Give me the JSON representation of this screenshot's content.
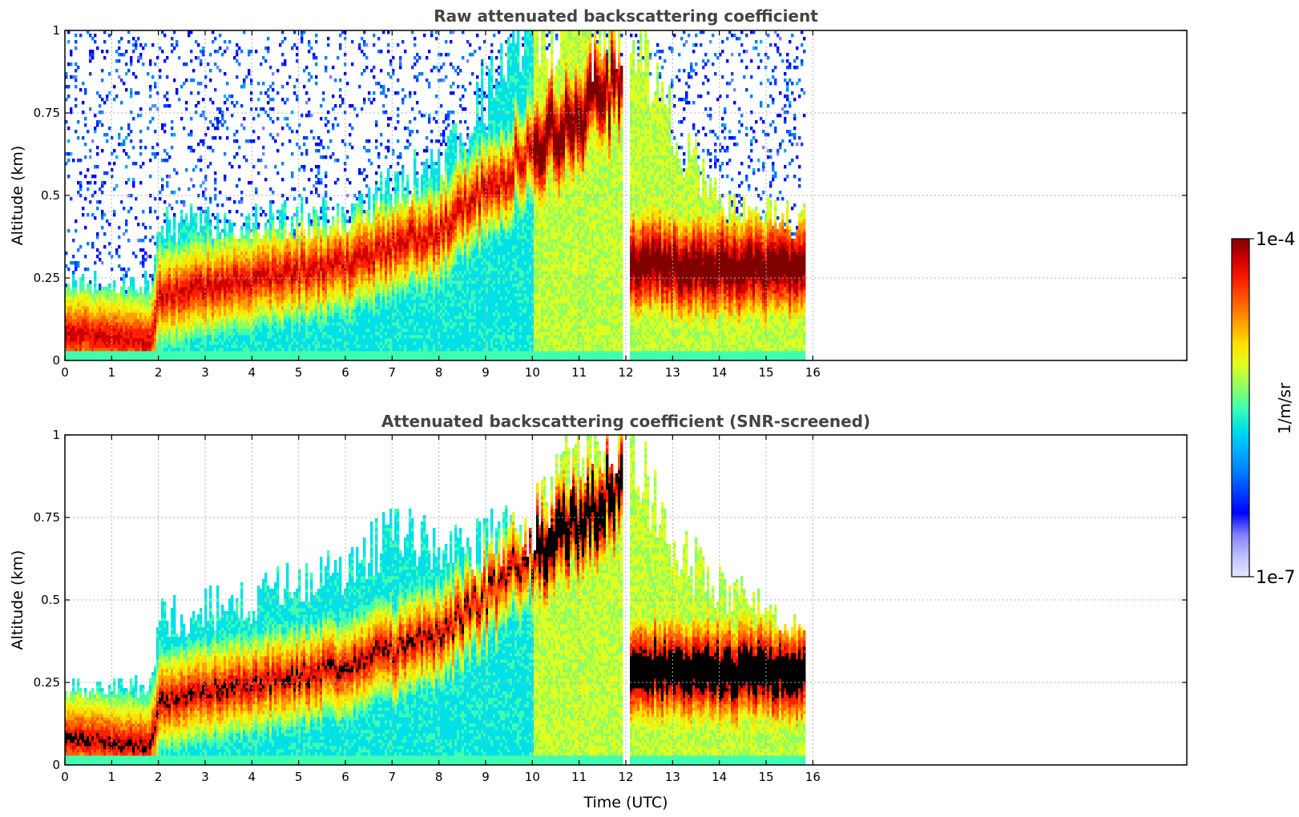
{
  "colors": {
    "colormap": [
      "#e8e8ff",
      "#bcbcff",
      "#8080ff",
      "#0000ff",
      "#0040ff",
      "#0080ff",
      "#00b0ff",
      "#00e0e8",
      "#40ffb0",
      "#90ff60",
      "#e0ff20",
      "#ffe000",
      "#ffa000",
      "#ff6000",
      "#ff2000",
      "#d00000",
      "#800000"
    ],
    "high_bs": "#000000"
  },
  "colorbar": {
    "max_label": "1e-4",
    "min_label": "1e-7",
    "unit_label": "1/m/sr"
  },
  "chart_data": [
    {
      "type": "heatmap",
      "title": "Raw attenuated backscattering coefficient",
      "xlabel": "",
      "ylabel": "Altitude (km)",
      "xlim": [
        0,
        24
      ],
      "ylim": [
        0,
        1
      ],
      "xticks": [
        "0",
        "1",
        "2",
        "3",
        "4",
        "5",
        "6",
        "7",
        "8",
        "9",
        "10",
        "11",
        "12",
        "13",
        "14",
        "15",
        "16"
      ],
      "yticks": [
        "0",
        "0.25",
        "0.5",
        "0.75",
        "1"
      ],
      "data_extent_hours": [
        0,
        15.8
      ],
      "grid": true,
      "screened": false,
      "colorscale": "log",
      "crange": [
        1e-07,
        0.0001
      ],
      "layer_top_km": [
        [
          0,
          0.24
        ],
        [
          1.8,
          0.24
        ],
        [
          2,
          0.42
        ],
        [
          4,
          0.42
        ],
        [
          6,
          0.45
        ],
        [
          8,
          0.6
        ],
        [
          10,
          1.0
        ],
        [
          12,
          1.0
        ],
        [
          13,
          0.7
        ],
        [
          14,
          0.5
        ],
        [
          15.8,
          0.42
        ]
      ],
      "aerosol_peak_km": [
        [
          0,
          0.09
        ],
        [
          1.8,
          0.06
        ],
        [
          2,
          0.2
        ],
        [
          4,
          0.25
        ],
        [
          6,
          0.3
        ],
        [
          8,
          0.4
        ],
        [
          10,
          0.65
        ],
        [
          11.9,
          0.85
        ],
        [
          12,
          0.3
        ],
        [
          15.8,
          0.28
        ]
      ]
    },
    {
      "type": "heatmap",
      "title": "Attenuated backscattering coefficient (SNR-screened)",
      "xlabel": "Time (UTC)",
      "ylabel": "Altitude (km)",
      "xlim": [
        0,
        24
      ],
      "ylim": [
        0,
        1
      ],
      "xticks": [
        "0",
        "1",
        "2",
        "3",
        "4",
        "5",
        "6",
        "7",
        "8",
        "9",
        "10",
        "11",
        "12",
        "13",
        "14",
        "15",
        "16"
      ],
      "yticks": [
        "0",
        "0.25",
        "0.5",
        "0.75",
        "1"
      ],
      "data_extent_hours": [
        0,
        15.8
      ],
      "grid": true,
      "screened": true,
      "colorscale": "log",
      "crange": [
        1e-07,
        0.0001
      ],
      "layer_top_km": [
        [
          0,
          0.24
        ],
        [
          1.8,
          0.24
        ],
        [
          2,
          0.45
        ],
        [
          4,
          0.5
        ],
        [
          6,
          0.6
        ],
        [
          7.3,
          0.75
        ],
        [
          8,
          0.62
        ],
        [
          10,
          0.75
        ],
        [
          11,
          1.0
        ],
        [
          12,
          1.0
        ],
        [
          13,
          0.65
        ],
        [
          14,
          0.55
        ],
        [
          15.8,
          0.42
        ]
      ],
      "aerosol_peak_km": [
        [
          0,
          0.09
        ],
        [
          1.8,
          0.06
        ],
        [
          2,
          0.2
        ],
        [
          4,
          0.25
        ],
        [
          6,
          0.3
        ],
        [
          8,
          0.4
        ],
        [
          10,
          0.65
        ],
        [
          11.9,
          0.85
        ],
        [
          12,
          0.3
        ],
        [
          15.8,
          0.28
        ]
      ]
    }
  ]
}
